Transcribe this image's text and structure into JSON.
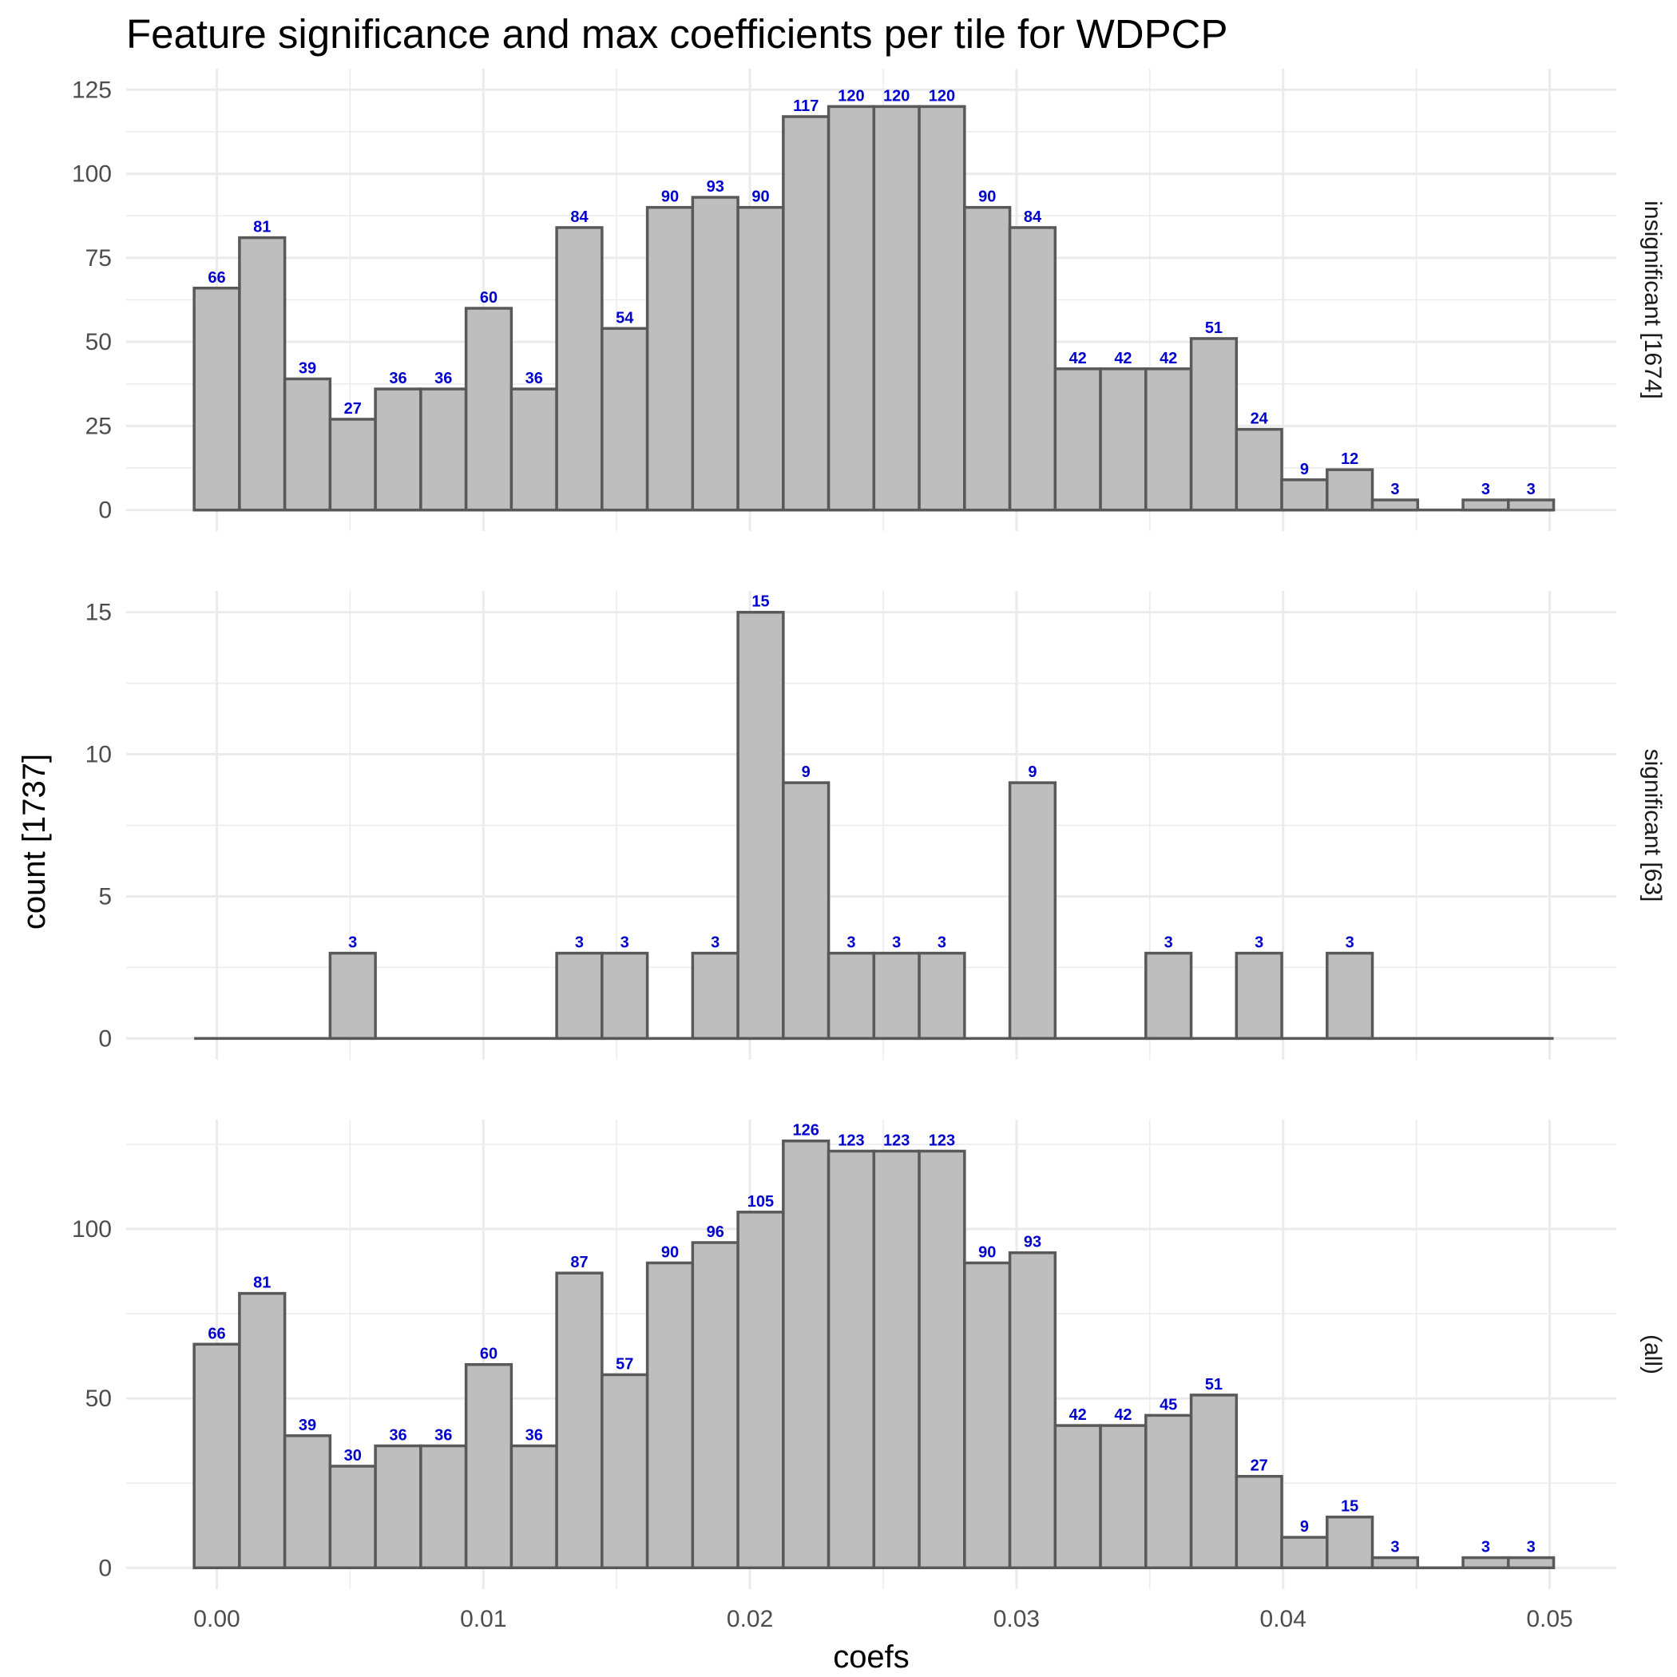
{
  "chart_data": {
    "type": "bar",
    "title": "Feature significance and max coefficients per tile for WDPCP",
    "xlabel": "coefs",
    "ylabel": "count [1737]",
    "x_ticks": [
      "0.00",
      "0.01",
      "0.02",
      "0.03",
      "0.04",
      "0.05"
    ],
    "x_tick_values": [
      0,
      0.01,
      0.02,
      0.03,
      0.04,
      0.05
    ],
    "xlim": [
      -0.0034,
      0.0525
    ],
    "bins": {
      "start": -0.00085,
      "width": 0.0017,
      "centers": [
        0.0,
        0.0017,
        0.0034,
        0.0051,
        0.0068,
        0.0085,
        0.0102,
        0.0119,
        0.0136,
        0.0153,
        0.017,
        0.0187,
        0.0204,
        0.0221,
        0.0238,
        0.0255,
        0.0272,
        0.0289,
        0.0306,
        0.0323,
        0.034,
        0.0357,
        0.0374,
        0.0391,
        0.0408,
        0.0425,
        0.0442,
        0.0459,
        0.0476,
        0.0493
      ]
    },
    "grid": true,
    "panels": [
      {
        "strip_label": "insignificant [1674]",
        "ylim": [
          -6.25,
          131.25
        ],
        "y_ticks": [
          "0",
          "25",
          "50",
          "75",
          "100",
          "125"
        ],
        "y_tick_values": [
          0,
          25,
          50,
          75,
          100,
          125
        ],
        "values": [
          66,
          81,
          39,
          27,
          36,
          36,
          60,
          36,
          84,
          54,
          90,
          93,
          90,
          117,
          120,
          120,
          120,
          90,
          84,
          42,
          42,
          42,
          51,
          24,
          9,
          12,
          3,
          0,
          3,
          3
        ],
        "labels": [
          "66",
          "81",
          "39",
          "27",
          "36",
          "36",
          "60",
          "36",
          "84",
          "54",
          "90",
          "93",
          "90",
          "117",
          "120",
          "120",
          "120",
          "90",
          "84",
          "42",
          "42",
          "42",
          "51",
          "24",
          "9",
          "12",
          "3",
          "",
          "3",
          "3"
        ]
      },
      {
        "strip_label": "significant [63]",
        "ylim": [
          -0.75,
          15.75
        ],
        "y_ticks": [
          "0",
          "5",
          "10",
          "15"
        ],
        "y_tick_values": [
          0,
          5,
          10,
          15
        ],
        "values": [
          0,
          0,
          0,
          3,
          0,
          0,
          0,
          0,
          3,
          3,
          0,
          3,
          15,
          9,
          3,
          3,
          3,
          0,
          9,
          0,
          0,
          3,
          0,
          3,
          0,
          3,
          0,
          0,
          0,
          0
        ],
        "labels": [
          "",
          "",
          "",
          "3",
          "",
          "",
          "",
          "",
          "3",
          "3",
          "",
          "3",
          "15",
          "9",
          "3",
          "3",
          "3",
          "",
          "9",
          "",
          "",
          "3",
          "",
          "3",
          "",
          "3",
          "",
          "",
          "",
          ""
        ]
      },
      {
        "strip_label": "(all)",
        "ylim": [
          -6.3,
          132.3
        ],
        "y_ticks": [
          "0",
          "50",
          "100"
        ],
        "y_tick_values": [
          0,
          50,
          100
        ],
        "values": [
          66,
          81,
          39,
          30,
          36,
          36,
          60,
          36,
          87,
          57,
          90,
          96,
          105,
          126,
          123,
          123,
          123,
          90,
          93,
          42,
          42,
          45,
          51,
          27,
          9,
          15,
          3,
          0,
          3,
          3
        ],
        "labels": [
          "66",
          "81",
          "39",
          "30",
          "36",
          "36",
          "60",
          "36",
          "87",
          "57",
          "90",
          "96",
          "105",
          "126",
          "123",
          "123",
          "123",
          "90",
          "93",
          "42",
          "42",
          "45",
          "51",
          "27",
          "9",
          "15",
          "3",
          "",
          "3",
          "3"
        ]
      }
    ]
  }
}
